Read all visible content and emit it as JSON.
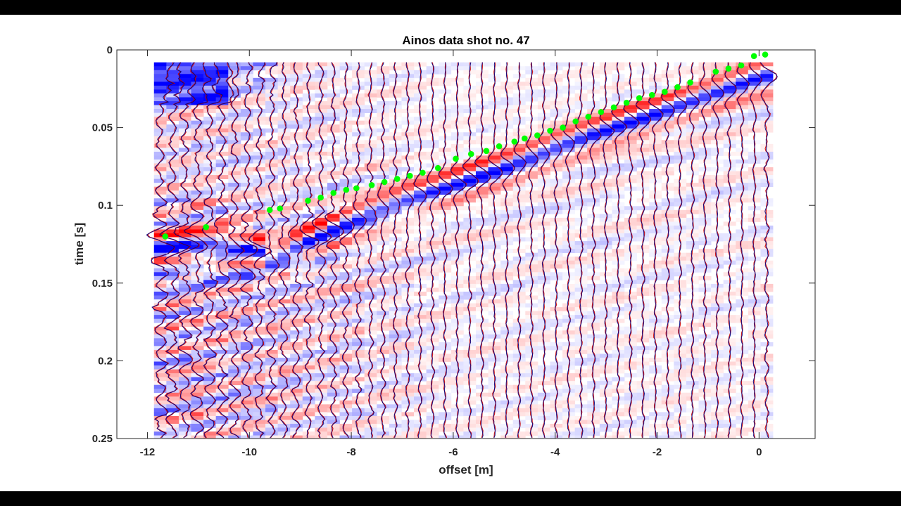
{
  "chart_data": {
    "type": "scatter",
    "title": "Ainos data shot no. 47",
    "xlabel": "offset [m]",
    "ylabel": "time [s]",
    "xlim": [
      -12.6,
      1.1
    ],
    "ylim": [
      0,
      0.25
    ],
    "y_reversed": true,
    "grid": false,
    "x_ticks": [
      -12,
      -10,
      -8,
      -6,
      -4,
      -2,
      0
    ],
    "x_tick_labels": [
      "-12",
      "-10",
      "-8",
      "-6",
      "-4",
      "-2",
      "0"
    ],
    "y_ticks": [
      0,
      0.05,
      0.1,
      0.15,
      0.2,
      0.25
    ],
    "y_tick_labels": [
      "0",
      "0.05",
      "0.1",
      "0.15",
      "0.2",
      "0.25"
    ],
    "background": "seismic wiggle traces over red-white-blue amplitude image",
    "colors": {
      "positive_amplitude": "#ff0000",
      "negative_amplitude": "#0000ff",
      "trace_dark": "#000080",
      "trace_red": "#cc0000",
      "picks": "#00ff00"
    },
    "traces": {
      "count": 50,
      "x_start": -11.75,
      "x_end": 0.15,
      "data_start_time": 0.008
    },
    "main_arrival": {
      "description": "strong coherent event (blue/red band)",
      "points": [
        {
          "x": -10.0,
          "t": 0.125
        },
        {
          "x": -9.5,
          "t": 0.135
        },
        {
          "x": -8.0,
          "t": 0.108
        },
        {
          "x": -6.0,
          "t": 0.086
        },
        {
          "x": -4.0,
          "t": 0.062
        },
        {
          "x": -2.0,
          "t": 0.039
        },
        {
          "x": -0.5,
          "t": 0.022
        },
        {
          "x": 0.1,
          "t": 0.015
        }
      ]
    },
    "series": [
      {
        "type": "scatter",
        "color": "#00ff00",
        "x": [
          -11.65,
          -10.85,
          -9.6,
          -9.4,
          -8.85,
          -8.6,
          -8.35,
          -8.1,
          -7.9,
          -7.6,
          -7.35,
          -7.1,
          -6.85,
          -6.6,
          -6.3,
          -5.95,
          -5.65,
          -5.35,
          -5.1,
          -4.8,
          -4.6,
          -4.35,
          -4.1,
          -3.85,
          -3.6,
          -3.35,
          -3.1,
          -2.85,
          -2.6,
          -2.35,
          -2.1,
          -1.85,
          -1.6,
          -1.35,
          -0.85,
          -0.6,
          -0.35,
          -0.1,
          0.12
        ],
        "y": [
          0.12,
          0.114,
          0.103,
          0.102,
          0.097,
          0.095,
          0.092,
          0.09,
          0.089,
          0.087,
          0.085,
          0.083,
          0.081,
          0.079,
          0.076,
          0.07,
          0.067,
          0.065,
          0.062,
          0.059,
          0.057,
          0.055,
          0.052,
          0.05,
          0.046,
          0.043,
          0.04,
          0.037,
          0.034,
          0.031,
          0.029,
          0.027,
          0.024,
          0.021,
          0.014,
          0.012,
          0.01,
          0.004,
          0.003
        ]
      }
    ]
  }
}
